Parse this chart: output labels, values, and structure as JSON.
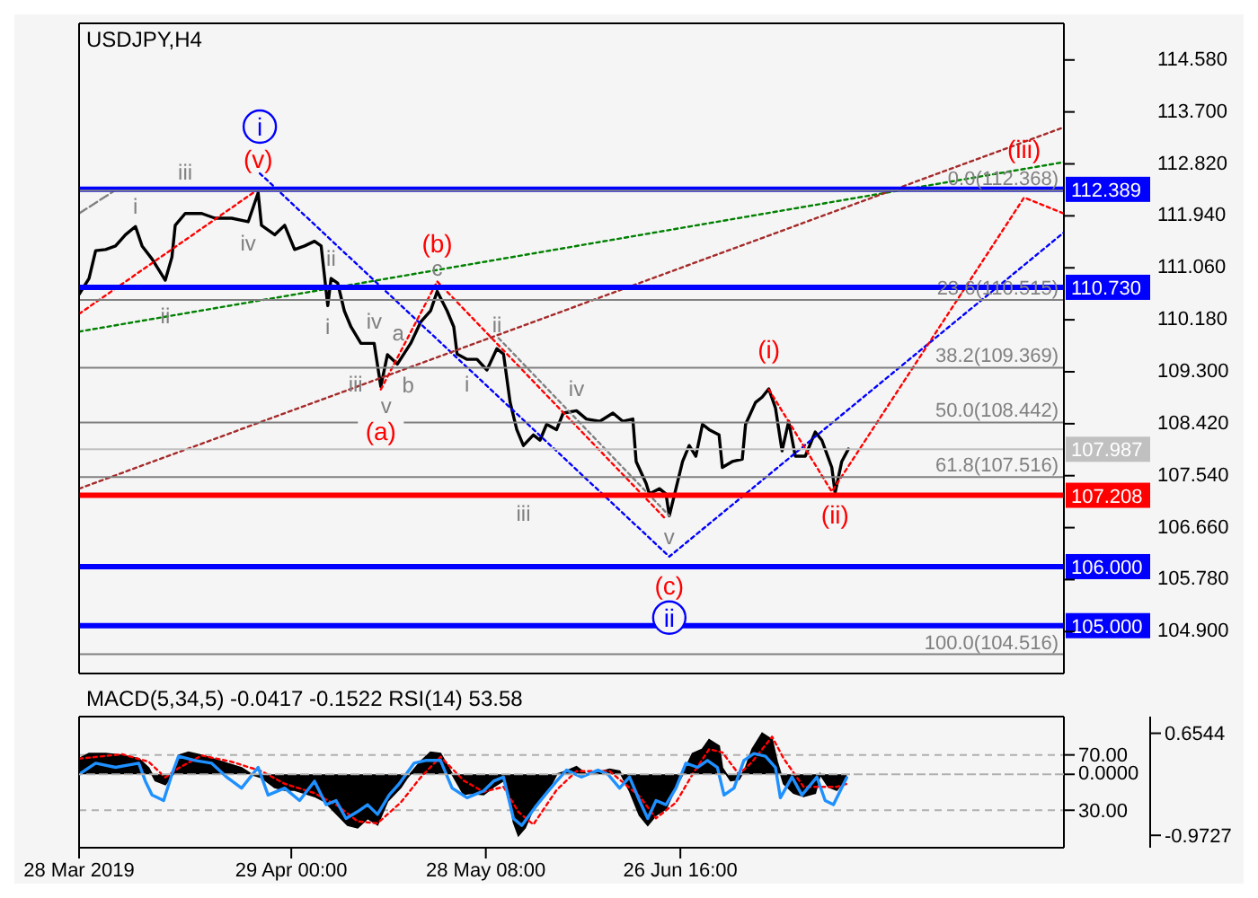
{
  "chart_data": [
    {
      "type": "line",
      "title": "USDJPY,H4",
      "xlim": [
        "2019-03-28T00:00",
        "2019-08-23T12:00"
      ],
      "ylim": [
        104.19,
        115.2
      ],
      "tick_labels": "y",
      "yticks": [
        {
          "value": 114.58,
          "label": "114.580"
        },
        {
          "value": 113.7,
          "label": "113.700"
        },
        {
          "value": 112.82,
          "label": "112.820"
        },
        {
          "value": 111.94,
          "label": "111.940"
        },
        {
          "value": 111.06,
          "label": "111.060"
        },
        {
          "value": 110.18,
          "label": "110.180"
        },
        {
          "value": 109.3,
          "label": "109.300"
        },
        {
          "value": 108.42,
          "label": "108.420"
        },
        {
          "value": 107.54,
          "label": "107.540"
        },
        {
          "value": 106.66,
          "label": "106.660"
        },
        {
          "value": 105.78,
          "label": "105.780"
        },
        {
          "value": 104.9,
          "label": "104.900"
        }
      ],
      "series": [
        {
          "color": "#000000",
          "x": [
            "2019-03-28T00:00",
            "2019-03-29T12:00",
            "2019-03-30T12:00",
            "2019-04-01T00:00",
            "2019-04-02T12:00",
            "2019-04-04T00:00",
            "2019-04-05T12:00",
            "2019-04-06T12:00",
            "2019-04-08T00:00",
            "2019-04-10T00:00",
            "2019-04-11T00:00",
            "2019-04-11T12:00",
            "2019-04-13T00:00",
            "2019-04-15T12:00",
            "2019-04-17T12:00",
            "2019-04-20T00:00",
            "2019-04-22T12:00",
            "2019-04-24T00:00",
            "2019-04-24T12:00",
            "2019-04-26T12:00",
            "2019-04-28T00:00",
            "2019-04-29T12:00",
            "2019-05-01T00:00",
            "2019-05-02T12:00",
            "2019-05-03T12:00",
            "2019-05-04T12:00",
            "2019-05-05T00:00",
            "2019-05-06T00:00",
            "2019-05-07T00:00",
            "2019-05-08T00:00",
            "2019-05-09T12:00",
            "2019-05-11T12:00",
            "2019-05-12T12:00",
            "2019-05-13T12:00",
            "2019-05-15T00:00",
            "2019-05-17T00:00",
            "2019-05-18T12:00",
            "2019-05-20T00:00",
            "2019-05-21T00:00",
            "2019-05-22T12:00",
            "2019-05-23T12:00",
            "2019-05-24T00:00",
            "2019-05-25T12:00",
            "2019-05-27T00:00",
            "2019-05-28T12:00",
            "2019-05-30T00:00",
            "2019-05-31T00:00",
            "2019-06-01T00:00",
            "2019-06-02T00:00",
            "2019-06-03T00:00",
            "2019-06-04T12:00",
            "2019-06-05T12:00",
            "2019-06-06T12:00",
            "2019-06-08T00:00",
            "2019-06-09T00:00",
            "2019-06-11T00:00",
            "2019-06-12T12:00",
            "2019-06-14T12:00",
            "2019-06-16T12:00",
            "2019-06-18T00:00",
            "2019-06-19T12:00",
            "2019-06-20T00:00",
            "2019-06-21T12:00",
            "2019-06-22T00:00",
            "2019-06-23T12:00",
            "2019-06-24T12:00",
            "2019-06-25T00:00",
            "2019-06-26T00:00",
            "2019-06-27T00:00",
            "2019-06-28T00:00",
            "2019-06-29T00:00",
            "2019-06-30T00:00",
            "2019-07-01T00:00",
            "2019-07-02T12:00",
            "2019-07-03T00:00",
            "2019-07-04T12:00",
            "2019-07-06T00:00",
            "2019-07-06T12:00",
            "2019-07-08T00:00",
            "2019-07-09T00:00",
            "2019-07-10T00:00",
            "2019-07-11T00:00",
            "2019-07-12T00:00",
            "2019-07-13T00:00",
            "2019-07-14T00:00",
            "2019-07-15T12:00",
            "2019-07-17T00:00",
            "2019-07-18T00:00",
            "2019-07-19T12:00",
            "2019-07-20T00:00",
            "2019-07-21T00:00",
            "2019-07-22T00:00"
          ],
          "values": [
            110.61,
            110.88,
            111.35,
            111.37,
            111.43,
            111.62,
            111.76,
            111.43,
            111.21,
            110.85,
            111.24,
            111.78,
            111.98,
            111.98,
            111.9,
            111.9,
            111.84,
            112.33,
            111.78,
            111.62,
            111.78,
            111.37,
            111.43,
            111.51,
            111.43,
            110.42,
            110.88,
            110.8,
            110.33,
            110.06,
            109.78,
            109.78,
            109.05,
            109.59,
            109.43,
            109.78,
            110.14,
            110.33,
            110.66,
            110.33,
            110.06,
            109.6,
            109.51,
            109.51,
            109.33,
            109.69,
            109.6,
            108.78,
            108.32,
            108.05,
            108.23,
            108.14,
            108.41,
            108.32,
            108.6,
            108.64,
            108.5,
            108.46,
            108.6,
            108.46,
            108.5,
            107.78,
            107.41,
            107.23,
            107.32,
            107.23,
            106.86,
            107.32,
            107.78,
            108.05,
            107.87,
            108.41,
            108.32,
            108.23,
            107.68,
            107.78,
            107.82,
            108.41,
            108.78,
            108.87,
            109.01,
            108.69,
            107.96,
            108.46,
            107.87,
            107.87,
            108.28,
            108.14,
            107.68,
            107.25,
            107.78,
            107.99
          ]
        },
        {
          "color": "#0000ff",
          "line_style": "dotted",
          "x": [
            "2019-04-24T06:00",
            "2019-06-25T00:00",
            "2019-08-23T12:00"
          ],
          "values": [
            112.66,
            106.17,
            111.66
          ]
        },
        {
          "color": "#ff0000",
          "line_style": "dotted",
          "x": [
            "2019-03-28T00:00",
            "2019-04-24T00:00",
            "2019-05-04T00:00",
            "2019-05-12T12:00",
            "2019-05-21T00:00",
            "2019-06-24T12:00",
            "2019-07-03T00:00",
            "2019-07-10T00:00",
            "2019-07-19T12:00",
            "2019-08-17T12:00",
            "2019-08-23T12:00"
          ],
          "values": [
            110.28,
            112.39,
            null,
            109.0,
            110.83,
            106.8,
            null,
            109.0,
            107.27,
            112.25,
            111.98
          ]
        },
        {
          "color": "#008000",
          "line_style": "dotted",
          "x": [
            "2019-03-28T00:00",
            "2019-08-23T12:00"
          ],
          "values": [
            109.98,
            112.85
          ]
        },
        {
          "color": "#a52a2a",
          "line_style": "dotted",
          "x": [
            "2019-03-28T00:00",
            "2019-08-23T12:00"
          ],
          "values": [
            107.32,
            113.44
          ]
        },
        {
          "color": "#808080",
          "line_style": "dotted",
          "x": [
            "2019-05-30T06:00",
            "2019-06-25T00:00"
          ],
          "values": [
            109.87,
            106.86
          ]
        },
        {
          "color": "#808080",
          "line_style": "dashed",
          "x": [
            "2019-03-28T00:00",
            "2019-04-02T06:00"
          ],
          "values": [
            111.98,
            112.36
          ]
        }
      ],
      "ref_lines": [
        {
          "axis": "y",
          "value": 112.389,
          "label": "112.389",
          "color": "#0000ff"
        },
        {
          "axis": "y",
          "value": 110.73,
          "label": "110.730",
          "color": "#0000ff"
        },
        {
          "axis": "y",
          "value": 107.208,
          "label": "107.208",
          "color": "#ff0000"
        },
        {
          "axis": "y",
          "value": 106.0,
          "label": "106.000",
          "color": "#0000ff"
        },
        {
          "axis": "y",
          "value": 105.0,
          "label": "105.000",
          "color": "#0000ff"
        },
        {
          "axis": "y",
          "value": 107.987,
          "label": "107.987",
          "color": "#c0c0c0"
        },
        {
          "axis": "y",
          "value": 112.368,
          "label": "0.0(112.368)",
          "color": "#808080"
        },
        {
          "axis": "y",
          "value": 110.515,
          "label": "23.6(110.515)",
          "color": "#808080"
        },
        {
          "axis": "y",
          "value": 109.369,
          "label": "38.2(109.369)",
          "color": "#808080"
        },
        {
          "axis": "y",
          "value": 108.442,
          "label": "50.0(108.442)",
          "color": "#808080"
        },
        {
          "axis": "y",
          "value": 107.516,
          "label": "61.8(107.516)",
          "color": "#808080"
        },
        {
          "axis": "y",
          "value": 104.516,
          "label": "100.0(104.516)",
          "color": "#808080"
        }
      ],
      "annotations": [
        {
          "text": "i",
          "x": "2019-04-24T06:00",
          "y": 112.66
        },
        {
          "text": "ii",
          "x": "2019-06-25T00:00",
          "y": 106.17
        },
        {
          "text": "(v)",
          "x": "2019-04-24T00:00",
          "y": 112.33
        },
        {
          "text": "(a)",
          "x": "2019-05-12T12:00",
          "y": 109.05
        },
        {
          "text": "(b)",
          "x": "2019-05-21T00:00",
          "y": 110.66
        },
        {
          "text": "(c)",
          "x": "2019-06-25T00:00",
          "y": 106.86
        },
        {
          "text": "(i)",
          "x": "2019-07-10T00:00",
          "y": 109.01
        },
        {
          "text": "(ii)",
          "x": "2019-07-20T00:00",
          "y": 107.25
        },
        {
          "text": "(iii)",
          "x": "2019-08-17T12:00",
          "y": 112.25
        },
        {
          "text": "i",
          "x": "2019-04-05T12:00",
          "y": 111.76
        },
        {
          "text": "ii",
          "x": "2019-04-10T00:00",
          "y": 110.85
        },
        {
          "text": "iii",
          "x": "2019-04-13T00:00",
          "y": 111.98
        },
        {
          "text": "iv",
          "x": "2019-04-22T12:00",
          "y": 111.84
        },
        {
          "text": "i",
          "x": "2019-05-04T12:00",
          "y": 110.42
        },
        {
          "text": "ii",
          "x": "2019-05-05T00:00",
          "y": 110.88
        },
        {
          "text": "iii",
          "x": "2019-05-09T12:00",
          "y": 109.78
        },
        {
          "text": "iv",
          "x": "2019-05-11T12:00",
          "y": 109.78
        },
        {
          "text": "v",
          "x": "2019-05-12T12:00",
          "y": 109.05
        },
        {
          "text": "a",
          "x": "2019-05-13T12:00",
          "y": 109.59
        },
        {
          "text": "b",
          "x": "2019-05-15T00:00",
          "y": 109.43
        },
        {
          "text": "c",
          "x": "2019-05-21T00:00",
          "y": 110.66
        },
        {
          "text": "i",
          "x": "2019-05-25T12:00",
          "y": 109.51
        },
        {
          "text": "ii",
          "x": "2019-05-30T00:00",
          "y": 109.69
        },
        {
          "text": "iii",
          "x": "2019-06-03T00:00",
          "y": 108.05
        },
        {
          "text": "iv",
          "x": "2019-06-11T00:00",
          "y": 108.64
        },
        {
          "text": "v",
          "x": "2019-06-25T00:00",
          "y": 106.86
        }
      ]
    },
    {
      "type": "line",
      "title": "MACD(5,34,5) -0.0417 -0.1522 RSI(14) 53.58",
      "xlim": [
        "2019-03-28T00:00",
        "2019-08-23T12:00"
      ],
      "grid": "y",
      "xticks": [
        {
          "value": "2019-03-28T00:00",
          "label": "28 Mar 2019"
        },
        {
          "value": "2019-04-29T00:00",
          "label": "29 Apr 00:00"
        },
        {
          "value": "2019-05-28T08:00",
          "label": "28 May 08:00"
        },
        {
          "value": "2019-06-26T16:00",
          "label": "26 Jun 16:00"
        }
      ],
      "ylim": [
        2.9,
        97.7
      ],
      "yticks": [
        {
          "value": 70,
          "label": "70.00"
        },
        {
          "value": 30,
          "label": "30.00"
        }
      ],
      "y2lim": [
        -1.17,
        0.92
      ],
      "y2ticks": [
        0.6544,
        -0.9727
      ],
      "series": [
        {
          "type": "area",
          "color": "#000000",
          "axis": "y2",
          "x": [
            "2019-03-28T00:00",
            "2019-03-29T12:00",
            "2019-04-01T00:00",
            "2019-04-03T12:00",
            "2019-04-06T00:00",
            "2019-04-07T12:00",
            "2019-04-08T12:00",
            "2019-04-10T00:00",
            "2019-04-11T12:00",
            "2019-04-12T00:00",
            "2019-04-13T12:00",
            "2019-04-15T12:00",
            "2019-04-17T00:00",
            "2019-04-18T12:00",
            "2019-04-20T00:00",
            "2019-04-21T12:00",
            "2019-04-23T00:00",
            "2019-04-24T12:00",
            "2019-04-26T12:00",
            "2019-04-28T00:00",
            "2019-04-29T12:00",
            "2019-05-01T00:00",
            "2019-05-02T12:00",
            "2019-05-04T00:00",
            "2019-05-06T00:00",
            "2019-05-07T12:00",
            "2019-05-09T00:00",
            "2019-05-10T12:00",
            "2019-05-12T00:00",
            "2019-05-13T12:00",
            "2019-05-15T12:00",
            "2019-05-16T12:00",
            "2019-05-18T12:00",
            "2019-05-20T00:00",
            "2019-05-21T12:00",
            "2019-05-23T00:00",
            "2019-05-25T00:00",
            "2019-05-26T00:00",
            "2019-05-28T00:00",
            "2019-05-29T12:00",
            "2019-05-31T00:00",
            "2019-06-01T00:00",
            "2019-06-01T12:00",
            "2019-06-02T06:00",
            "2019-06-03T06:00",
            "2019-06-04T12:00",
            "2019-06-06T12:00",
            "2019-06-08T00:00",
            "2019-06-09T12:00",
            "2019-06-11T00:00",
            "2019-06-12T12:00",
            "2019-06-14T00:00",
            "2019-06-16T00:00",
            "2019-06-17T12:00",
            "2019-06-19T00:00",
            "2019-06-20T12:00",
            "2019-06-21T18:00",
            "2019-06-23T00:00",
            "2019-06-24T12:00",
            "2019-06-26T00:00",
            "2019-06-27T00:00",
            "2019-06-28T12:00",
            "2019-06-30T00:00",
            "2019-07-01T00:00",
            "2019-07-02T12:00",
            "2019-07-03T00:00",
            "2019-07-04T06:00",
            "2019-07-05T12:00",
            "2019-07-06T12:00",
            "2019-07-07T12:00",
            "2019-07-09T00:00",
            "2019-07-10T12:00",
            "2019-07-11T06:00",
            "2019-07-12T06:00",
            "2019-07-13T18:00",
            "2019-07-15T06:00",
            "2019-07-17T00:00",
            "2019-07-17T18:00",
            "2019-07-19T00:00",
            "2019-07-20T06:00",
            "2019-07-21T18:00"
          ],
          "values": [
            0.25,
            0.33,
            0.33,
            0.3,
            0.25,
            0.1,
            -0.1,
            -0.16,
            0.05,
            0.3,
            0.35,
            0.3,
            0.25,
            0.2,
            0.15,
            0.1,
            0.0,
            -0.05,
            -0.21,
            -0.25,
            -0.25,
            -0.3,
            -0.35,
            -0.43,
            -0.65,
            -0.81,
            -0.85,
            -0.7,
            -0.8,
            -0.43,
            -0.21,
            -0.05,
            0.2,
            0.35,
            0.33,
            0.05,
            -0.32,
            -0.3,
            -0.32,
            -0.2,
            -0.1,
            -0.4,
            -0.76,
            -0.9727,
            -0.85,
            -0.54,
            -0.3,
            0.0,
            0.05,
            0.12,
            0.0,
            0.02,
            0.08,
            0.05,
            -0.26,
            -0.65,
            -0.81,
            -0.65,
            -0.55,
            -0.2,
            0.0,
            0.33,
            0.4,
            0.55,
            0.45,
            0.1,
            -0.1,
            -0.08,
            0.1,
            0.4,
            0.6544,
            0.55,
            0.2,
            -0.15,
            -0.3,
            -0.35,
            -0.3,
            0.0,
            -0.2,
            -0.25,
            -0.0417
          ]
        },
        {
          "color": "#ff0000",
          "line_style": "dotted",
          "axis": "y2",
          "x": [
            "2019-03-28T00:00",
            "2019-04-03T12:00",
            "2019-04-07T12:00",
            "2019-04-10T00:00",
            "2019-04-12T00:00",
            "2019-04-15T12:00",
            "2019-04-20T00:00",
            "2019-04-24T12:00",
            "2019-04-28T00:00",
            "2019-05-02T12:00",
            "2019-05-06T00:00",
            "2019-05-09T00:00",
            "2019-05-12T00:00",
            "2019-05-15T12:00",
            "2019-05-18T12:00",
            "2019-05-21T12:00",
            "2019-05-25T00:00",
            "2019-05-28T00:00",
            "2019-05-31T00:00",
            "2019-06-02T06:00",
            "2019-06-04T12:00",
            "2019-06-08T00:00",
            "2019-06-11T00:00",
            "2019-06-16T00:00",
            "2019-06-20T12:00",
            "2019-06-23T00:00",
            "2019-06-26T00:00",
            "2019-06-28T12:00",
            "2019-07-01T00:00",
            "2019-07-03T00:00",
            "2019-07-05T12:00",
            "2019-07-07T12:00",
            "2019-07-10T12:00",
            "2019-07-12T06:00",
            "2019-07-15T06:00",
            "2019-07-17T18:00",
            "2019-07-20T06:00",
            "2019-07-21T18:00"
          ],
          "values": [
            0.25,
            0.32,
            0.2,
            -0.05,
            0.1,
            0.3,
            0.2,
            0.05,
            -0.15,
            -0.3,
            -0.5,
            -0.75,
            -0.78,
            -0.45,
            -0.05,
            0.28,
            -0.1,
            -0.28,
            -0.2,
            -0.6,
            -0.8,
            -0.25,
            0.05,
            0.05,
            -0.35,
            -0.7,
            -0.45,
            0.0,
            0.4,
            0.35,
            0.0,
            0.2,
            0.6,
            0.25,
            -0.2,
            -0.2,
            -0.2,
            -0.1522
          ]
        },
        {
          "color": "#1e90ff",
          "x": [
            "2019-03-28T00:00",
            "2019-03-30T12:00",
            "2019-04-02T12:00",
            "2019-04-06T00:00",
            "2019-04-07T00:00",
            "2019-04-08T00:00",
            "2019-04-09T18:00",
            "2019-04-11T00:00",
            "2019-04-12T00:00",
            "2019-04-14T12:00",
            "2019-04-17T00:00",
            "2019-04-19T06:00",
            "2019-04-21T12:00",
            "2019-04-24T00:00",
            "2019-04-25T12:00",
            "2019-04-28T00:00",
            "2019-04-30T06:00",
            "2019-05-02T12:00",
            "2019-05-04T06:00",
            "2019-05-05T18:00",
            "2019-05-07T06:00",
            "2019-05-09T00:00",
            "2019-05-10T12:00",
            "2019-05-12T00:00",
            "2019-05-13T18:00",
            "2019-05-15T06:00",
            "2019-05-17T12:00",
            "2019-05-19T06:00",
            "2019-05-21T12:00",
            "2019-05-23T06:00",
            "2019-05-25T12:00",
            "2019-05-28T00:00",
            "2019-05-29T12:00",
            "2019-05-31T00:00",
            "2019-06-01T12:00",
            "2019-06-02T18:00",
            "2019-06-04T18:00",
            "2019-06-06T06:00",
            "2019-06-08T00:00",
            "2019-06-09T12:00",
            "2019-06-11T18:00",
            "2019-06-14T06:00",
            "2019-06-15T18:00",
            "2019-06-17T12:00",
            "2019-06-19T00:00",
            "2019-06-20T12:00",
            "2019-06-21T18:00",
            "2019-06-23T00:00",
            "2019-06-24T12:00",
            "2019-06-26T00:00",
            "2019-06-27T12:00",
            "2019-06-29T06:00",
            "2019-06-30T18:00",
            "2019-07-02T06:00",
            "2019-07-03T06:00",
            "2019-07-04T18:00",
            "2019-07-06T06:00",
            "2019-07-07T18:00",
            "2019-07-09T12:00",
            "2019-07-11T00:00",
            "2019-07-11T18:00",
            "2019-07-13T12:00",
            "2019-07-15T00:00",
            "2019-07-17T06:00",
            "2019-07-18T12:00",
            "2019-07-19T18:00",
            "2019-07-21T18:00"
          ],
          "values": [
            56,
            64,
            61,
            64,
            51,
            41,
            37,
            56,
            69,
            66,
            64,
            54,
            46,
            61,
            41,
            46,
            37,
            51,
            34,
            37,
            24,
            29,
            34,
            27,
            41,
            49,
            64,
            66,
            66,
            46,
            39,
            44,
            51,
            54,
            24,
            19,
            32,
            41,
            51,
            59,
            54,
            59,
            56,
            46,
            54,
            37,
            24,
            37,
            34,
            46,
            64,
            61,
            66,
            61,
            41,
            46,
            66,
            71,
            69,
            61,
            39,
            54,
            41,
            54,
            37,
            34,
            53.58
          ]
        }
      ],
      "ref_lines": [
        {
          "axis": "y2",
          "value": 0,
          "label": "0.0000",
          "color": "#b0b0b0",
          "line_style": "dashed"
        }
      ]
    }
  ]
}
